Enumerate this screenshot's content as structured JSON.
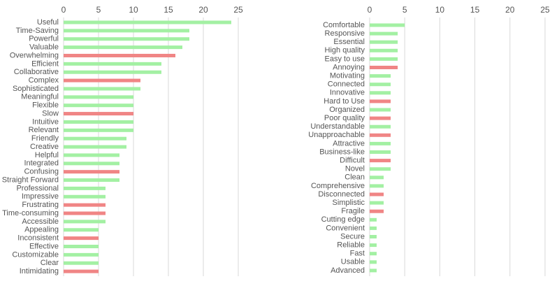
{
  "chart_data": [
    {
      "type": "bar",
      "orientation": "horizontal",
      "categories": [
        "Useful",
        "Time-Saving",
        "Powerful",
        "Valuable",
        "Overwhelming",
        "Efficient",
        "Collaborative",
        "Complex",
        "Sophisticated",
        "Meaningful",
        "Flexible",
        "Slow",
        "Intuitive",
        "Relevant",
        "Friendly",
        "Creative",
        "Helpful",
        "Integrated",
        "Confusing",
        "Straight Forward",
        "Professional",
        "Impressive",
        "Frustrating",
        "Time-consuming",
        "Accessible",
        "Appealing",
        "Inconsistent",
        "Effective",
        "Customizable",
        "Clear",
        "Intimidating"
      ],
      "values": [
        24,
        18,
        18,
        17,
        16,
        14,
        14,
        11,
        11,
        10,
        10,
        10,
        10,
        10,
        9,
        9,
        8,
        8,
        8,
        8,
        6,
        6,
        6,
        6,
        6,
        5,
        5,
        5,
        5,
        5,
        5
      ],
      "colors": [
        "#a3f0a3",
        "#a3f0a3",
        "#a3f0a3",
        "#a3f0a3",
        "#f08585",
        "#a3f0a3",
        "#a3f0a3",
        "#f08585",
        "#a3f0a3",
        "#a3f0a3",
        "#a3f0a3",
        "#f08585",
        "#a3f0a3",
        "#a3f0a3",
        "#a3f0a3",
        "#a3f0a3",
        "#a3f0a3",
        "#a3f0a3",
        "#f08585",
        "#a3f0a3",
        "#a3f0a3",
        "#a3f0a3",
        "#f08585",
        "#f08585",
        "#a3f0a3",
        "#a3f0a3",
        "#f08585",
        "#a3f0a3",
        "#a3f0a3",
        "#a3f0a3",
        "#f08585"
      ],
      "xlim": [
        0,
        25
      ],
      "xticks": [
        0,
        5,
        10,
        15,
        20,
        25
      ],
      "grid": true
    },
    {
      "type": "bar",
      "orientation": "horizontal",
      "categories": [
        "Comfortable",
        "Responsive",
        "Essential",
        "High quality",
        "Easy to use",
        "Annoying",
        "Motivating",
        "Connected",
        "Innovative",
        "Hard to Use",
        "Organized",
        "Poor quality",
        "Understandable",
        "Unapproachable",
        "Attractive",
        "Business-like",
        "Difficult",
        "Novel",
        "Clean",
        "Comprehensive",
        "Disconnected",
        "Simplistic",
        "Fragile",
        "Cutting edge",
        "Convenient",
        "Secure",
        "Reliable",
        "Fast",
        "Usable",
        "Advanced"
      ],
      "values": [
        5,
        4,
        4,
        4,
        4,
        4,
        3,
        3,
        3,
        3,
        3,
        3,
        3,
        3,
        3,
        3,
        3,
        3,
        2,
        2,
        2,
        2,
        2,
        1,
        1,
        1,
        1,
        1,
        1,
        1
      ],
      "colors": [
        "#a3f0a3",
        "#a3f0a3",
        "#a3f0a3",
        "#a3f0a3",
        "#a3f0a3",
        "#f08585",
        "#a3f0a3",
        "#a3f0a3",
        "#a3f0a3",
        "#f08585",
        "#a3f0a3",
        "#f08585",
        "#a3f0a3",
        "#f08585",
        "#a3f0a3",
        "#a3f0a3",
        "#f08585",
        "#a3f0a3",
        "#a3f0a3",
        "#a3f0a3",
        "#f08585",
        "#a3f0a3",
        "#f08585",
        "#a3f0a3",
        "#a3f0a3",
        "#a3f0a3",
        "#a3f0a3",
        "#a3f0a3",
        "#a3f0a3",
        "#a3f0a3"
      ],
      "xlim": [
        0,
        25
      ],
      "xticks": [
        0,
        5,
        10,
        15,
        20,
        25
      ],
      "grid": true
    }
  ]
}
